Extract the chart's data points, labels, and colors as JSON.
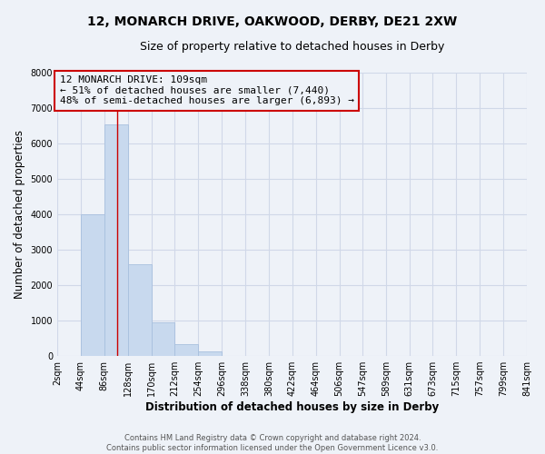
{
  "title_line1": "12, MONARCH DRIVE, OAKWOOD, DERBY, DE21 2XW",
  "title_line2": "Size of property relative to detached houses in Derby",
  "xlabel": "Distribution of detached houses by size in Derby",
  "ylabel": "Number of detached properties",
  "bar_color": "#c8d9ee",
  "bar_edgecolor": "#a8c0de",
  "vline_x": 109,
  "vline_color": "#cc0000",
  "annotation_title": "12 MONARCH DRIVE: 109sqm",
  "annotation_line1": "← 51% of detached houses are smaller (7,440)",
  "annotation_line2": "48% of semi-detached houses are larger (6,893) →",
  "annotation_box_edgecolor": "#cc0000",
  "bins_left": [
    2,
    44,
    86,
    128,
    170,
    212,
    254,
    296,
    338,
    380,
    422,
    464,
    506,
    547,
    589,
    631,
    673,
    715,
    757,
    799
  ],
  "bin_width": 42,
  "bar_heights": [
    0,
    4000,
    6550,
    2600,
    960,
    330,
    120,
    0,
    0,
    0,
    0,
    0,
    0,
    0,
    0,
    0,
    0,
    0,
    0,
    0
  ],
  "ylim": [
    0,
    8000
  ],
  "yticks": [
    0,
    1000,
    2000,
    3000,
    4000,
    5000,
    6000,
    7000,
    8000
  ],
  "xtick_labels": [
    "2sqm",
    "44sqm",
    "86sqm",
    "128sqm",
    "170sqm",
    "212sqm",
    "254sqm",
    "296sqm",
    "338sqm",
    "380sqm",
    "422sqm",
    "464sqm",
    "506sqm",
    "547sqm",
    "589sqm",
    "631sqm",
    "673sqm",
    "715sqm",
    "757sqm",
    "799sqm",
    "841sqm"
  ],
  "footer_line1": "Contains HM Land Registry data © Crown copyright and database right 2024.",
  "footer_line2": "Contains public sector information licensed under the Open Government Licence v3.0.",
  "bg_color": "#eef2f8",
  "grid_color": "#d0d8e8",
  "title_fontsize": 10,
  "subtitle_fontsize": 9,
  "axis_label_fontsize": 8.5,
  "tick_fontsize": 7,
  "footer_fontsize": 6,
  "annotation_fontsize": 8
}
